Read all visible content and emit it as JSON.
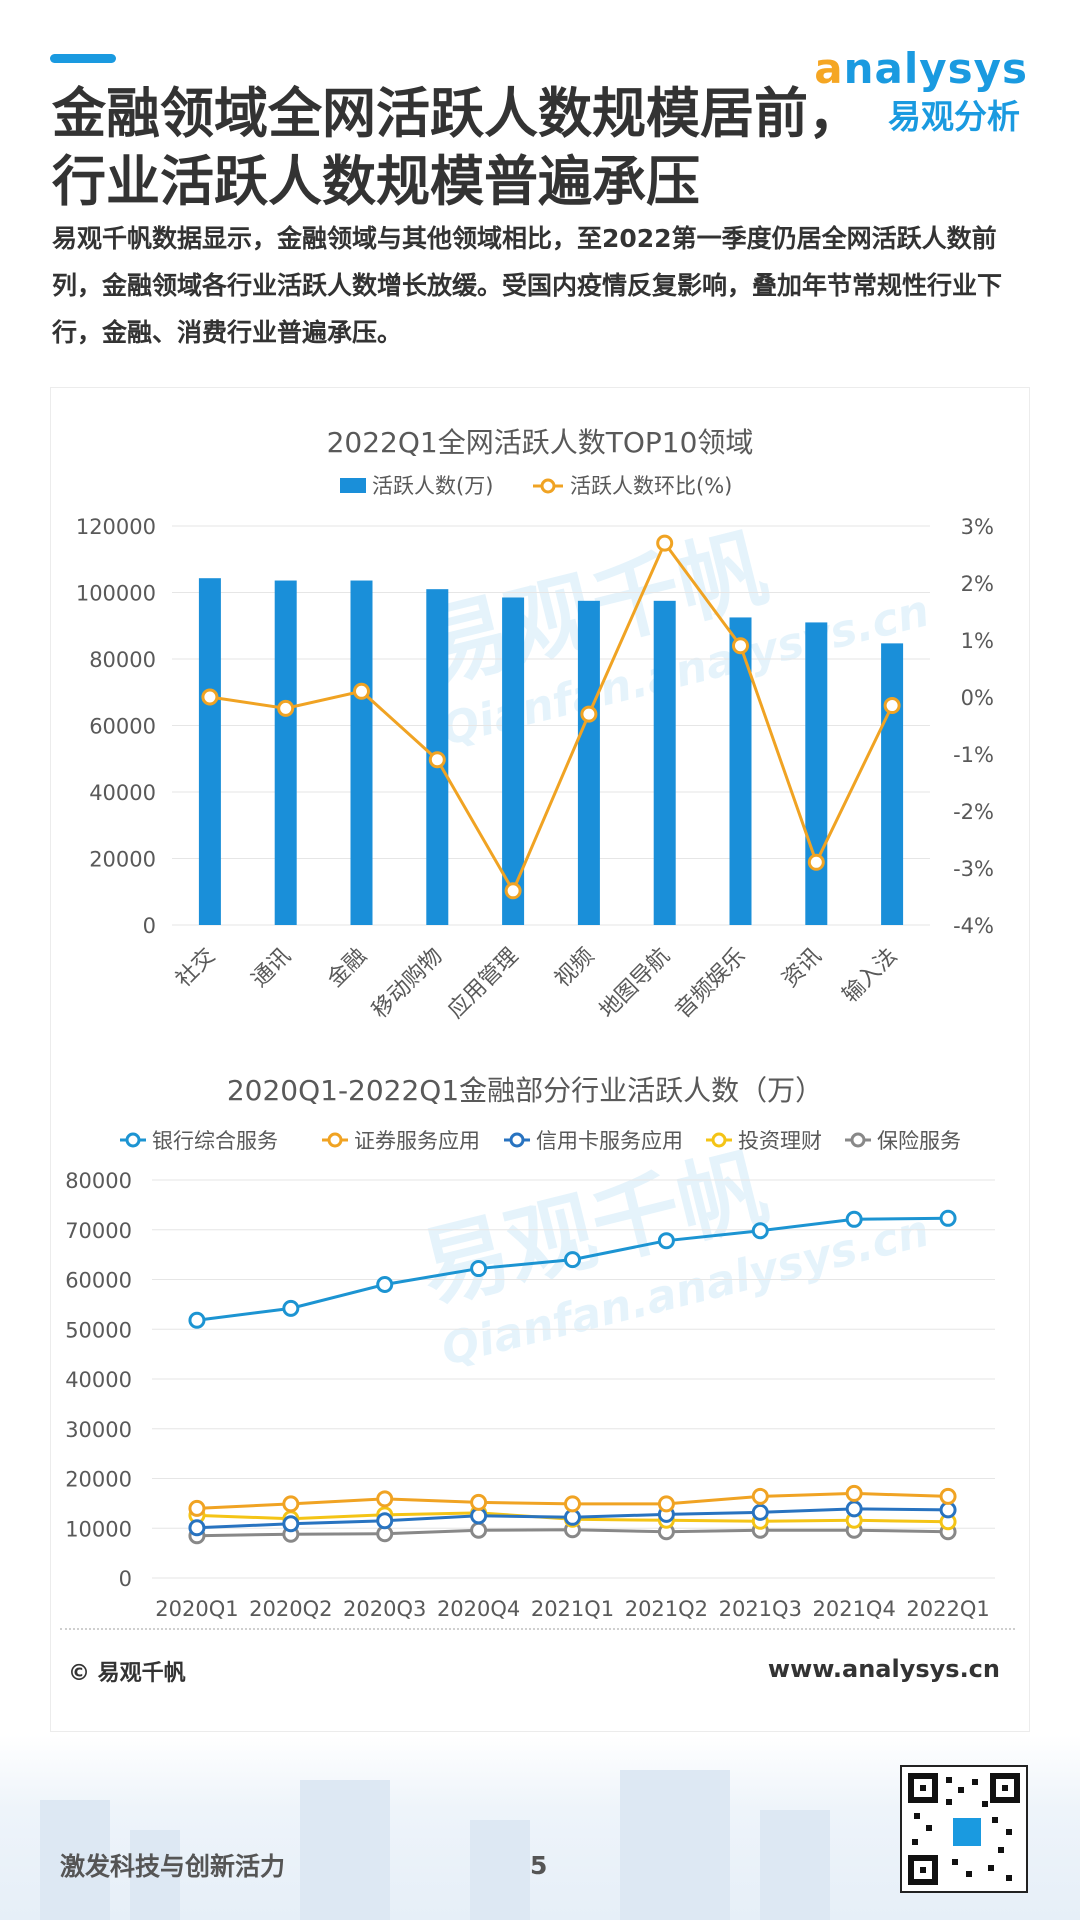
{
  "header": {
    "title_line1": "金融领域全网活跃人数规模居前，",
    "title_line2": "行业活跃人数规模普遍承压",
    "intro": "易观千帆数据显示，金融领域与其他领域相比，至2022第一季度仍居全网活跃人数前列，金融领域各行业活跃人数增长放缓。受国内疫情反复影响，叠加年节常规性行业下行，金融、消费行业普遍承压。"
  },
  "logo": {
    "brand_first": "a",
    "brand_rest": "nalysys",
    "cn_name": "易观分析"
  },
  "watermark": {
    "cn": "易观千帆",
    "en": "Qianfan.analysys.cn"
  },
  "colors": {
    "accent": "#1a9ae0",
    "bar": "#1a8fd9",
    "line_orange": "#f0a323",
    "bank": "#1c94d2",
    "securities": "#f0a323",
    "credit_card": "#2873c0",
    "investment": "#f4c416",
    "insurance": "#888888"
  },
  "chart_data": [
    {
      "type": "bar",
      "title": "2022Q1全网活跃人数TOP10领域",
      "categories": [
        "社交",
        "通讯",
        "金融",
        "移动购物",
        "应用管理",
        "视频",
        "地图导航",
        "音频娱乐",
        "资讯",
        "输入法"
      ],
      "series": [
        {
          "name": "活跃人数(万)",
          "type": "bar",
          "axis": "left",
          "values": [
            104300,
            103600,
            103600,
            101000,
            98500,
            97500,
            97500,
            92500,
            91000,
            84700
          ]
        },
        {
          "name": "活跃人数环比(%)",
          "type": "line",
          "axis": "right",
          "values": [
            0.0,
            -0.2,
            0.1,
            -1.1,
            -3.4,
            -0.3,
            2.7,
            0.9,
            -2.9,
            -0.15
          ]
        }
      ],
      "ylim_left": [
        0,
        120000
      ],
      "yticks_left": [
        "0",
        "20000",
        "40000",
        "60000",
        "80000",
        "100000",
        "120000"
      ],
      "ylim_right": [
        -4,
        3
      ],
      "yticks_right": [
        "-4%",
        "-3%",
        "-2%",
        "-1%",
        "0%",
        "1%",
        "2%",
        "3%"
      ],
      "legend": "top"
    },
    {
      "type": "line",
      "title": "2020Q1-2022Q1金融部分行业活跃人数（万）",
      "categories": [
        "2020Q1",
        "2020Q2",
        "2020Q3",
        "2020Q4",
        "2021Q1",
        "2021Q2",
        "2021Q3",
        "2021Q4",
        "2022Q1"
      ],
      "series": [
        {
          "name": "银行综合服务",
          "values": [
            51800,
            54200,
            59000,
            62200,
            64000,
            67800,
            69800,
            72100,
            72300
          ]
        },
        {
          "name": "证券服务应用",
          "values": [
            14000,
            14900,
            15900,
            15200,
            14900,
            14900,
            16400,
            17000,
            16400
          ]
        },
        {
          "name": "信用卡服务应用",
          "values": [
            10100,
            10900,
            11500,
            12500,
            12200,
            12800,
            13200,
            13900,
            13700
          ]
        },
        {
          "name": "投资理财",
          "values": [
            12600,
            11900,
            12700,
            13100,
            11800,
            11600,
            11400,
            11600,
            11300
          ]
        },
        {
          "name": "保险服务",
          "values": [
            8500,
            8800,
            8900,
            9600,
            9700,
            9300,
            9600,
            9600,
            9300
          ]
        }
      ],
      "ylim": [
        0,
        80000
      ],
      "yticks": [
        "0",
        "10000",
        "20000",
        "30000",
        "40000",
        "50000",
        "60000",
        "70000",
        "80000"
      ],
      "legend": "top"
    }
  ],
  "footer": {
    "copyright": "© 易观千帆",
    "url": "www.analysys.cn",
    "slogan": "激发科技与创新活力",
    "page_number": "5"
  }
}
